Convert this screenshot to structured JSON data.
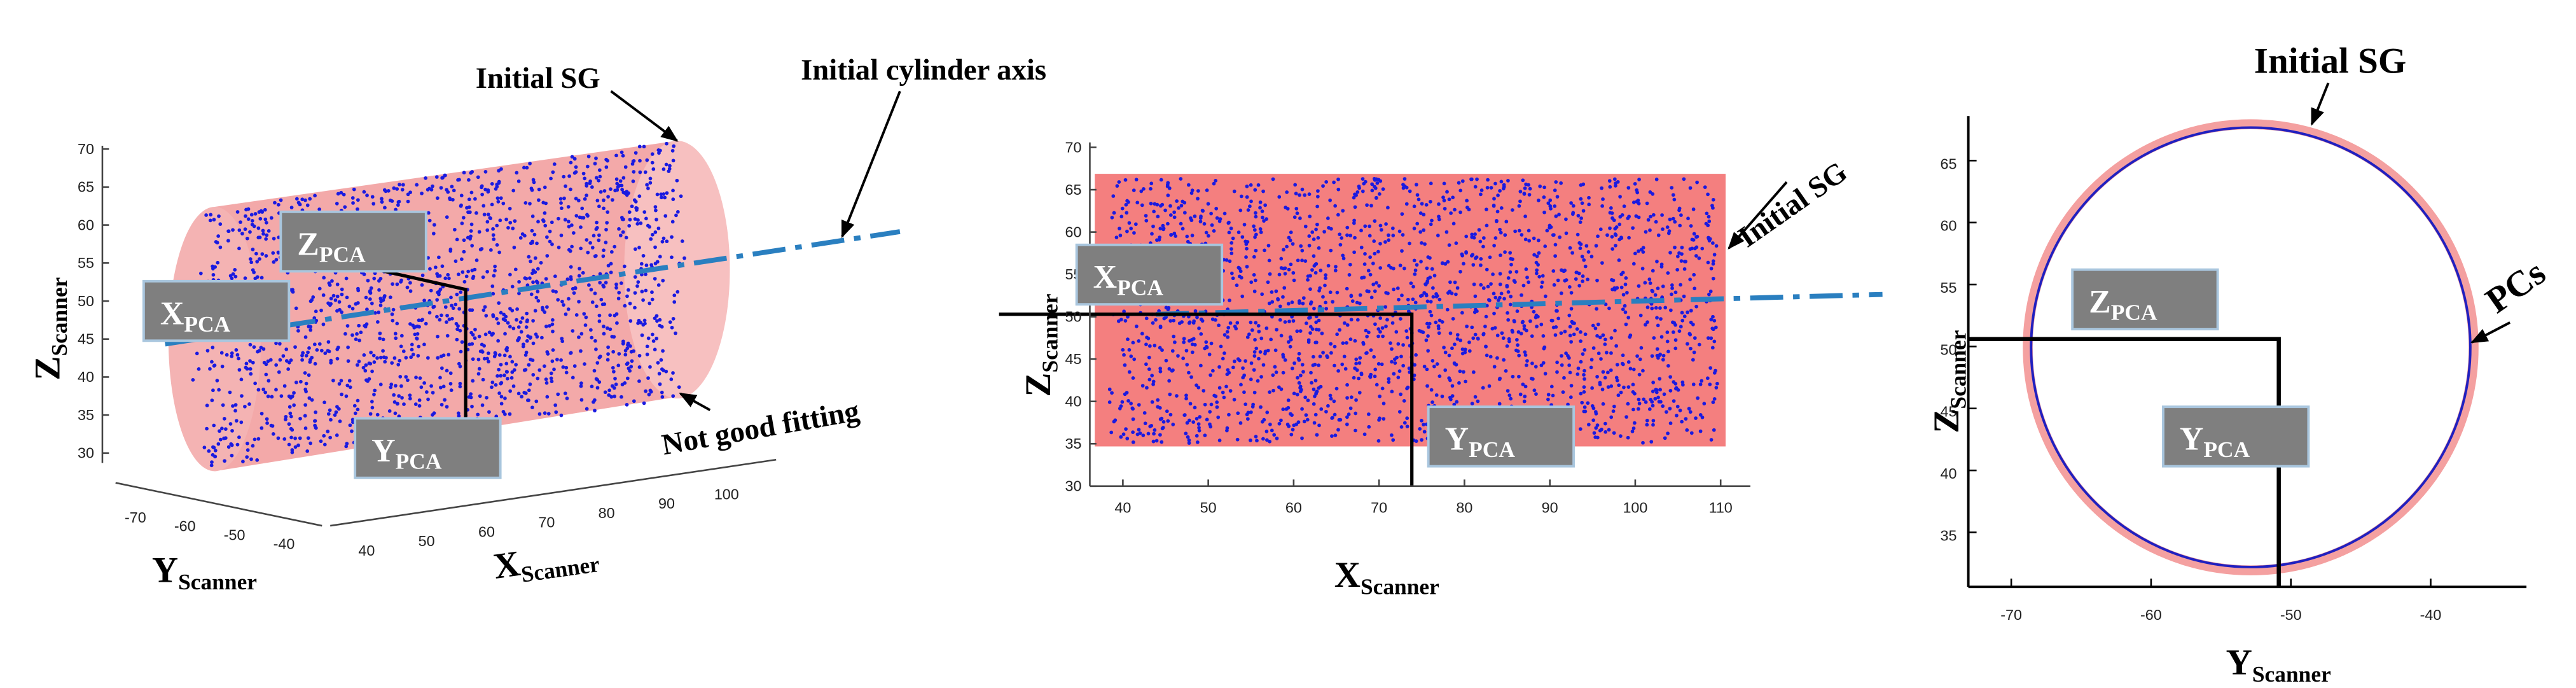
{
  "panels": [
    {
      "annotations": [
        "Initial SG",
        "Initial cylinder axis",
        "Not good fitting"
      ],
      "pca_labels": [
        {
          "main": "Z",
          "sub": "PCA"
        },
        {
          "main": "X",
          "sub": "PCA"
        },
        {
          "main": "Y",
          "sub": "PCA"
        }
      ],
      "axis_labels": [
        {
          "main": "Z",
          "sub": "Scanner"
        },
        {
          "main": "Y",
          "sub": "Scanner"
        },
        {
          "main": "X",
          "sub": "Scanner"
        }
      ],
      "zticks": [
        70,
        65,
        60,
        55,
        50,
        45,
        40,
        35,
        30
      ],
      "yticks": [
        -70,
        -60,
        -50,
        -40
      ],
      "xticks": [
        40,
        50,
        60,
        70,
        80,
        90,
        100
      ]
    },
    {
      "annotations": [
        "Initial SG"
      ],
      "pca_labels": [
        {
          "main": "X",
          "sub": "PCA"
        },
        {
          "main": "Y",
          "sub": "PCA"
        }
      ],
      "axis_labels": [
        {
          "main": "Z",
          "sub": "Scanner"
        },
        {
          "main": "X",
          "sub": "Scanner"
        }
      ],
      "yticks": [
        70,
        65,
        60,
        55,
        50,
        45,
        40,
        35,
        30
      ],
      "xticks": [
        40,
        50,
        60,
        70,
        80,
        90,
        100,
        110
      ]
    },
    {
      "annotations": [
        "Initial SG",
        "PCs"
      ],
      "pca_labels": [
        {
          "main": "Z",
          "sub": "PCA"
        },
        {
          "main": "Y",
          "sub": "PCA"
        }
      ],
      "axis_labels": [
        {
          "main": "Z",
          "sub": "Scanner"
        },
        {
          "main": "Y",
          "sub": "Scanner"
        }
      ],
      "yticks": [
        65,
        60,
        55,
        50,
        45,
        40,
        35
      ],
      "xticks": [
        -70,
        -60,
        -50,
        -40
      ]
    }
  ]
}
